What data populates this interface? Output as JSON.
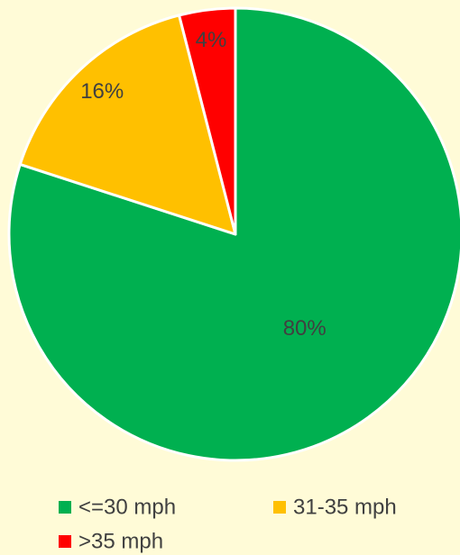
{
  "chart_data": {
    "type": "pie",
    "categories": [
      "<=30 mph",
      "31-35 mph",
      ">35 mph"
    ],
    "values": [
      80,
      16,
      4
    ],
    "value_labels": [
      "80%",
      "16%",
      "4%"
    ],
    "colors": [
      "#00b050",
      "#ffc000",
      "#ff0000"
    ],
    "legend": "bottom"
  }
}
